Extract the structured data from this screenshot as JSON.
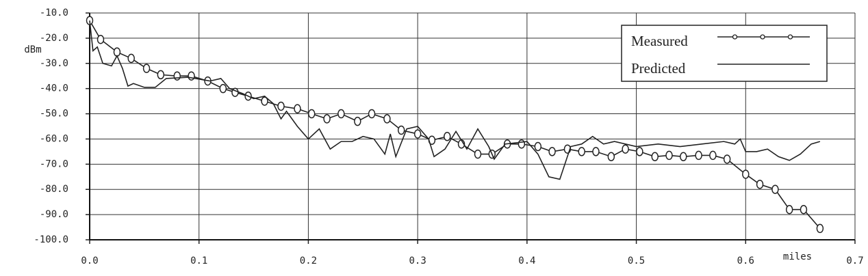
{
  "chart_data": {
    "type": "line",
    "y_label": "dBm",
    "x_label": "miles",
    "xlim": [
      0,
      0.7
    ],
    "ylim": [
      -100,
      -10
    ],
    "xticks": [
      {
        "value": 0,
        "label": "0.0"
      },
      0.1,
      0.2,
      0.3,
      0.4,
      0.5,
      0.6,
      0.7
    ],
    "yticks": [
      {
        "value": -10,
        "label": "-10.0"
      },
      {
        "value": -20,
        "label": "-20.0"
      },
      {
        "value": -30,
        "label": "-30.0"
      },
      {
        "value": -40,
        "label": "-40.0"
      },
      {
        "value": -50,
        "label": "-50.0"
      },
      {
        "value": -60,
        "label": "-60.0"
      },
      {
        "value": -70,
        "label": "-70.0"
      },
      {
        "value": -80,
        "label": "-80.0"
      },
      {
        "value": -90,
        "label": "-90.0"
      },
      {
        "value": -100,
        "label": "-100.0"
      }
    ],
    "grid": true,
    "legend": "upper right",
    "series": [
      {
        "name": "Measured",
        "color": "#222",
        "marker": "circle",
        "x": [
          0.0,
          0.01,
          0.025,
          0.038,
          0.052,
          0.065,
          0.08,
          0.093,
          0.108,
          0.122,
          0.133,
          0.145,
          0.16,
          0.175,
          0.19,
          0.203,
          0.217,
          0.23,
          0.245,
          0.258,
          0.272,
          0.285,
          0.3,
          0.313,
          0.327,
          0.34,
          0.355,
          0.368,
          0.382,
          0.395,
          0.41,
          0.423,
          0.437,
          0.45,
          0.463,
          0.477,
          0.49,
          0.503,
          0.517,
          0.53,
          0.543,
          0.557,
          0.57,
          0.583,
          0.6,
          0.613,
          0.627,
          0.64,
          0.653,
          0.668
        ],
        "values": [
          -13,
          -20.5,
          -25.5,
          -28,
          -32,
          -34.5,
          -35,
          -35,
          -37,
          -40,
          -41.5,
          -43,
          -45,
          -47,
          -48,
          -50,
          -52,
          -50,
          -53,
          -50,
          -52,
          -56.5,
          -58,
          -60.5,
          -59,
          -62,
          -66,
          -66,
          -62,
          -62,
          -63,
          -65,
          -64,
          -65,
          -65,
          -67,
          -64,
          -65,
          -67,
          -66.5,
          -67,
          -66.5,
          -66.5,
          -68,
          -74,
          -78,
          -80,
          -88,
          -88,
          -95.5
        ]
      },
      {
        "name": "Predicted",
        "color": "#222",
        "x": [
          0,
          0.003,
          0.007,
          0.012,
          0.02,
          0.025,
          0.03,
          0.035,
          0.04,
          0.05,
          0.06,
          0.07,
          0.09,
          0.11,
          0.12,
          0.128,
          0.14,
          0.15,
          0.16,
          0.168,
          0.175,
          0.18,
          0.19,
          0.2,
          0.21,
          0.22,
          0.23,
          0.24,
          0.25,
          0.26,
          0.27,
          0.275,
          0.28,
          0.29,
          0.3,
          0.31,
          0.315,
          0.325,
          0.335,
          0.345,
          0.355,
          0.365,
          0.37,
          0.38,
          0.4,
          0.41,
          0.42,
          0.43,
          0.44,
          0.45,
          0.46,
          0.47,
          0.48,
          0.5,
          0.52,
          0.54,
          0.56,
          0.58,
          0.59,
          0.595,
          0.6,
          0.61,
          0.62,
          0.63,
          0.64,
          0.65,
          0.66,
          0.668
        ],
        "values": [
          -13,
          -25,
          -23.5,
          -30,
          -31,
          -27,
          -32,
          -39,
          -38,
          -39.5,
          -39.5,
          -36,
          -35.5,
          -37,
          -36,
          -40,
          -42,
          -44,
          -43,
          -46,
          -52,
          -49,
          -55,
          -60,
          -56,
          -64,
          -61,
          -61,
          -59,
          -60,
          -66,
          -58,
          -67,
          -56,
          -55,
          -60,
          -67,
          -64,
          -57,
          -64,
          -56,
          -63,
          -68,
          -62,
          -61,
          -66,
          -75,
          -76,
          -63,
          -62,
          -59,
          -62,
          -61,
          -63,
          -62,
          -63,
          -62,
          -61,
          -62,
          -60,
          -65,
          -65,
          -64,
          -67,
          -68.5,
          -66,
          -62,
          -61
        ]
      }
    ]
  }
}
